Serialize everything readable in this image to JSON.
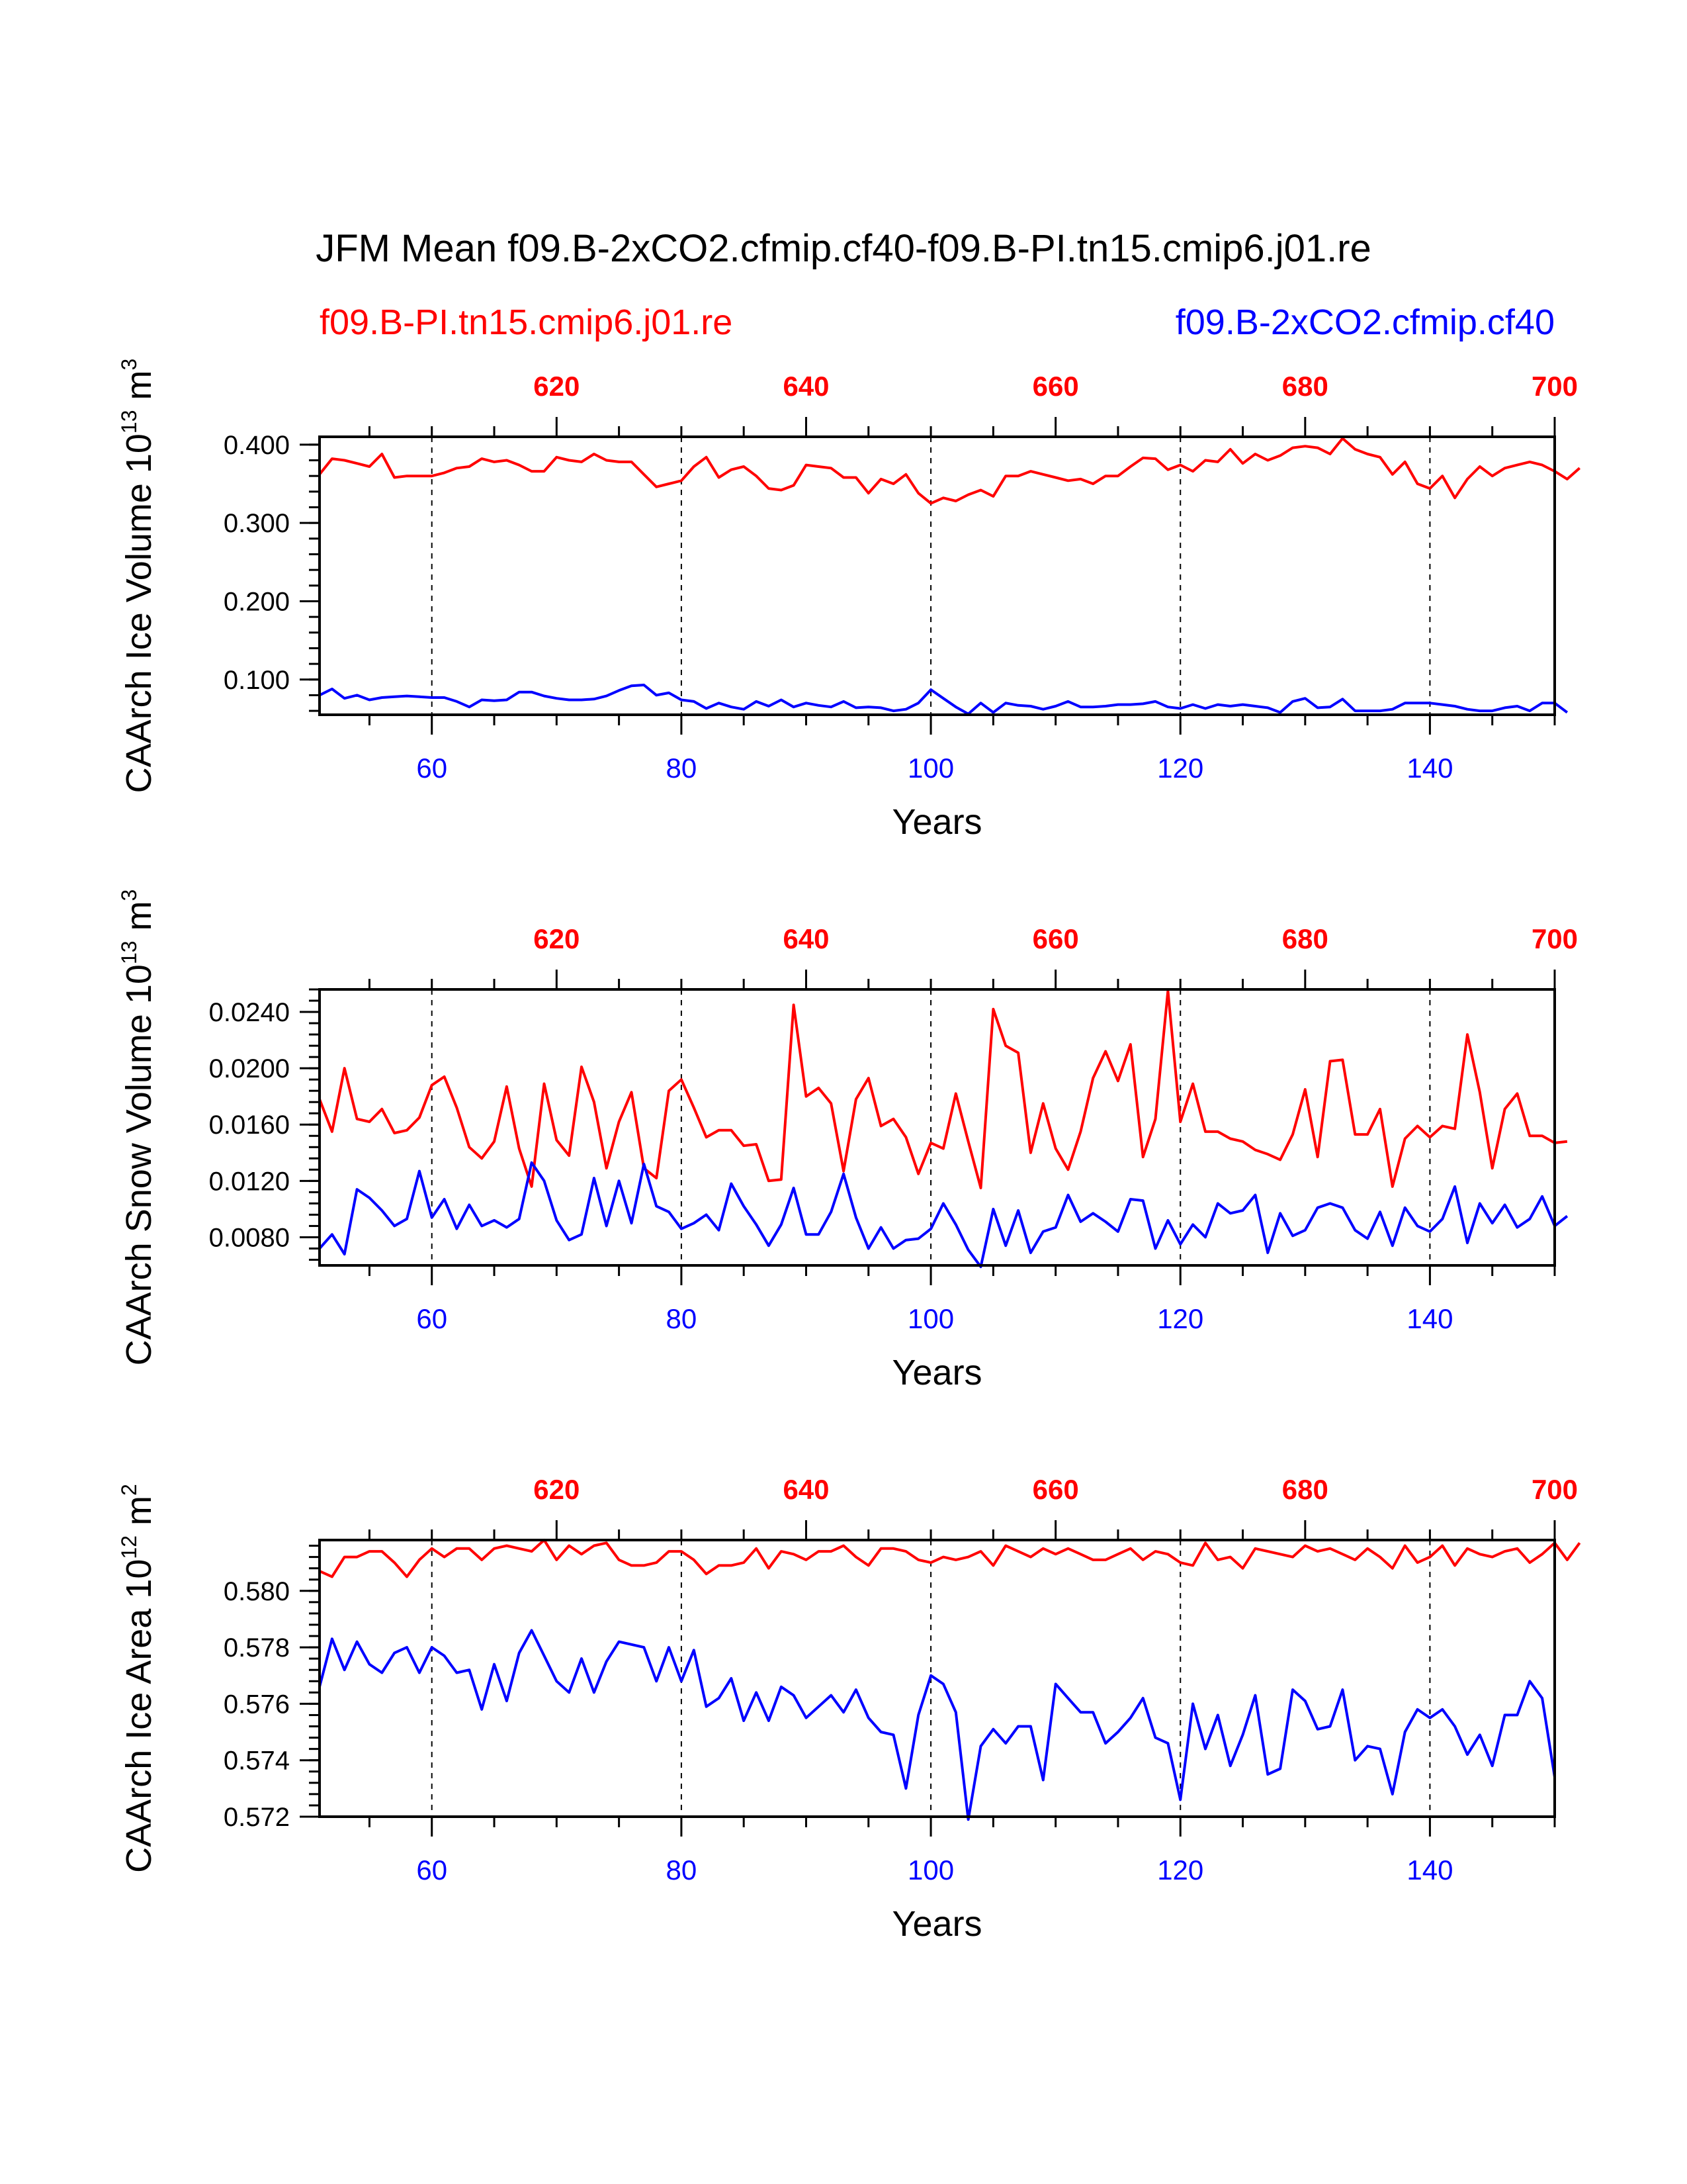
{
  "colors": {
    "pi": "#ff0000",
    "co2": "#0000ff",
    "axis": "#000000"
  },
  "chart_data": {
    "type": "line",
    "title": "JFM Mean f09.B-2xCO2.cfmip.cf40-f09.B-PI.tn15.cmip6.j01.re",
    "legend": [
      {
        "name": "f09.B-PI.tn15.cmip6.j01.re",
        "color": "#ff0000",
        "position": "top-left"
      },
      {
        "name": "f09.B-2xCO2.cfmip.cf40",
        "color": "#0000ff",
        "position": "top-right"
      }
    ],
    "panels": [
      {
        "id": "ice-volume",
        "ylabel": "CAArch Ice Volume 10",
        "ylabel_sup": "13",
        "ylabel_unit": " m",
        "ylabel_unit_sup": "3",
        "xlabel": "Years",
        "xlim": [
          51,
          150
        ],
        "top_xlim": [
          601,
          700
        ],
        "ylim": [
          0.055,
          0.41
        ],
        "yticks": [
          0.1,
          0.2,
          0.3,
          0.4
        ],
        "ytick_labels": [
          "0.100",
          "0.200",
          "0.300",
          "0.400"
        ],
        "yminor_step": 0.02,
        "xticks": [
          60,
          80,
          100,
          120,
          140
        ],
        "xtick_labels": [
          "60",
          "80",
          "100",
          "120",
          "140"
        ],
        "top_xticks": [
          620,
          640,
          660,
          680,
          700
        ],
        "top_xtick_labels": [
          "620",
          "640",
          "660",
          "680",
          "700"
        ],
        "series": [
          {
            "name": "f09.B-PI.tn15.cmip6.j01.re",
            "color": "#ff0000",
            "x_start": 51,
            "values": [
              0.362,
              0.382,
              0.38,
              0.376,
              0.372,
              0.388,
              0.358,
              0.36,
              0.36,
              0.36,
              0.364,
              0.37,
              0.372,
              0.382,
              0.378,
              0.38,
              0.374,
              0.366,
              0.366,
              0.384,
              0.38,
              0.378,
              0.388,
              0.38,
              0.378,
              0.378,
              0.362,
              0.346,
              0.35,
              0.354,
              0.372,
              0.384,
              0.358,
              0.368,
              0.372,
              0.36,
              0.344,
              0.342,
              0.348,
              0.374,
              0.372,
              0.37,
              0.358,
              0.358,
              0.338,
              0.356,
              0.35,
              0.362,
              0.338,
              0.325,
              0.332,
              0.328,
              0.336,
              0.342,
              0.334,
              0.36,
              0.36,
              0.366,
              0.362,
              0.358,
              0.354,
              0.356,
              0.35,
              0.36,
              0.36,
              0.372,
              0.383,
              0.382,
              0.368,
              0.374,
              0.366,
              0.38,
              0.378,
              0.394,
              0.376,
              0.388,
              0.38,
              0.386,
              0.396,
              0.398,
              0.396,
              0.388,
              0.408,
              0.394,
              0.388,
              0.384,
              0.362,
              0.378,
              0.35,
              0.344,
              0.36,
              0.332,
              0.356,
              0.372,
              0.36,
              0.37,
              0.374,
              0.378,
              0.374,
              0.366,
              0.356,
              0.37
            ]
          },
          {
            "name": "f09.B-2xCO2.cfmip.cf40",
            "color": "#0000ff",
            "x_start": 51,
            "values": [
              0.08,
              0.088,
              0.076,
              0.08,
              0.074,
              0.077,
              0.078,
              0.079,
              0.078,
              0.077,
              0.077,
              0.072,
              0.065,
              0.074,
              0.073,
              0.074,
              0.084,
              0.084,
              0.079,
              0.076,
              0.074,
              0.074,
              0.075,
              0.079,
              0.086,
              0.092,
              0.093,
              0.08,
              0.083,
              0.074,
              0.072,
              0.063,
              0.07,
              0.065,
              0.062,
              0.072,
              0.066,
              0.074,
              0.065,
              0.07,
              0.067,
              0.065,
              0.072,
              0.064,
              0.065,
              0.064,
              0.06,
              0.062,
              0.07,
              0.087,
              0.076,
              0.065,
              0.056,
              0.07,
              0.058,
              0.07,
              0.067,
              0.066,
              0.062,
              0.066,
              0.072,
              0.065,
              0.065,
              0.066,
              0.068,
              0.068,
              0.069,
              0.072,
              0.065,
              0.063,
              0.068,
              0.063,
              0.068,
              0.066,
              0.068,
              0.066,
              0.064,
              0.058,
              0.072,
              0.076,
              0.064,
              0.065,
              0.075,
              0.06,
              0.06,
              0.06,
              0.062,
              0.07,
              0.07,
              0.07,
              0.068,
              0.066,
              0.062,
              0.06,
              0.06,
              0.064,
              0.066,
              0.06,
              0.07,
              0.07,
              0.058
            ]
          }
        ]
      },
      {
        "id": "snow-volume",
        "ylabel": "CAArch Snow Volume 10",
        "ylabel_sup": "13",
        "ylabel_unit": " m",
        "ylabel_unit_sup": "3",
        "xlabel": "Years",
        "xlim": [
          51,
          150
        ],
        "top_xlim": [
          601,
          700
        ],
        "ylim": [
          0.006,
          0.0256
        ],
        "yticks": [
          0.008,
          0.012,
          0.016,
          0.02,
          0.024
        ],
        "ytick_labels": [
          "0.0080",
          "0.0120",
          "0.0160",
          "0.0200",
          "0.0240"
        ],
        "yminor_step": 0.0008,
        "xticks": [
          60,
          80,
          100,
          120,
          140
        ],
        "xtick_labels": [
          "60",
          "80",
          "100",
          "120",
          "140"
        ],
        "top_xticks": [
          620,
          640,
          660,
          680,
          700
        ],
        "top_xtick_labels": [
          "620",
          "640",
          "660",
          "680",
          "700"
        ],
        "series": [
          {
            "name": "f09.B-PI.tn15.cmip6.j01.re",
            "color": "#ff0000",
            "x_start": 51,
            "values": [
              0.0178,
              0.0155,
              0.02,
              0.0164,
              0.0162,
              0.0171,
              0.0154,
              0.0156,
              0.0165,
              0.0188,
              0.0194,
              0.0172,
              0.0144,
              0.0136,
              0.0148,
              0.0187,
              0.0143,
              0.0116,
              0.0189,
              0.0149,
              0.0138,
              0.0201,
              0.0176,
              0.0129,
              0.0162,
              0.0183,
              0.0129,
              0.0122,
              0.0184,
              0.0192,
              0.0172,
              0.0151,
              0.0156,
              0.0156,
              0.0145,
              0.0146,
              0.012,
              0.0121,
              0.0245,
              0.018,
              0.0186,
              0.0175,
              0.0127,
              0.0178,
              0.0193,
              0.0159,
              0.0164,
              0.0151,
              0.0125,
              0.0147,
              0.0143,
              0.0182,
              0.0148,
              0.0115,
              0.0242,
              0.0216,
              0.0211,
              0.014,
              0.0175,
              0.0143,
              0.0128,
              0.0155,
              0.0193,
              0.0212,
              0.0191,
              0.0217,
              0.0137,
              0.0164,
              0.0255,
              0.0162,
              0.0189,
              0.0155,
              0.0155,
              0.015,
              0.0148,
              0.0142,
              0.0139,
              0.0135,
              0.0153,
              0.0185,
              0.0137,
              0.0205,
              0.0206,
              0.0153,
              0.0153,
              0.0171,
              0.0116,
              0.015,
              0.0159,
              0.0151,
              0.0159,
              0.0157,
              0.0224,
              0.0183,
              0.0129,
              0.0171,
              0.0182,
              0.0152,
              0.0152,
              0.0147,
              0.0148
            ]
          },
          {
            "name": "f09.B-2xCO2.cfmip.cf40",
            "color": "#0000ff",
            "x_start": 51,
            "values": [
              0.0072,
              0.0082,
              0.0068,
              0.0114,
              0.0108,
              0.0099,
              0.0088,
              0.0093,
              0.0127,
              0.0094,
              0.0107,
              0.0086,
              0.0103,
              0.0088,
              0.0092,
              0.0087,
              0.0093,
              0.0133,
              0.012,
              0.0092,
              0.0078,
              0.0082,
              0.0122,
              0.0088,
              0.012,
              0.009,
              0.0132,
              0.0102,
              0.0098,
              0.0086,
              0.009,
              0.0096,
              0.0085,
              0.0118,
              0.0102,
              0.0089,
              0.0074,
              0.0089,
              0.0115,
              0.0082,
              0.0082,
              0.0098,
              0.0125,
              0.0094,
              0.0072,
              0.0087,
              0.0072,
              0.0078,
              0.0079,
              0.0086,
              0.0104,
              0.0089,
              0.0071,
              0.0059,
              0.01,
              0.0074,
              0.0099,
              0.0069,
              0.0084,
              0.0087,
              0.011,
              0.0091,
              0.0097,
              0.0091,
              0.0084,
              0.0107,
              0.0106,
              0.0072,
              0.0092,
              0.0075,
              0.0089,
              0.008,
              0.0104,
              0.0097,
              0.0099,
              0.011,
              0.0069,
              0.0097,
              0.0081,
              0.0085,
              0.0101,
              0.0104,
              0.0101,
              0.0085,
              0.0079,
              0.0098,
              0.0074,
              0.0101,
              0.0088,
              0.0084,
              0.0093,
              0.0116,
              0.0076,
              0.0104,
              0.009,
              0.0103,
              0.0087,
              0.0093,
              0.0109,
              0.0088,
              0.0095
            ]
          }
        ]
      },
      {
        "id": "ice-area",
        "ylabel": "CAArch Ice Area 10",
        "ylabel_sup": "12",
        "ylabel_unit": " m",
        "ylabel_unit_sup": "2",
        "xlabel": "Years",
        "xlim": [
          51,
          150
        ],
        "top_xlim": [
          601,
          700
        ],
        "ylim": [
          0.572,
          0.5818
        ],
        "yticks": [
          0.572,
          0.574,
          0.576,
          0.578,
          0.58
        ],
        "ytick_labels": [
          "0.572",
          "0.574",
          "0.576",
          "0.578",
          "0.580"
        ],
        "yminor_step": 0.0004,
        "xticks": [
          60,
          80,
          100,
          120,
          140
        ],
        "xtick_labels": [
          "60",
          "80",
          "100",
          "120",
          "140"
        ],
        "top_xticks": [
          620,
          640,
          660,
          680,
          700
        ],
        "top_xtick_labels": [
          "620",
          "640",
          "660",
          "680",
          "700"
        ],
        "series": [
          {
            "name": "f09.B-PI.tn15.cmip6.j01.re",
            "color": "#ff0000",
            "x_start": 51,
            "values": [
              0.5807,
              0.5805,
              0.5812,
              0.5812,
              0.5814,
              0.5814,
              0.581,
              0.5805,
              0.5811,
              0.5815,
              0.5812,
              0.5815,
              0.5815,
              0.5811,
              0.5815,
              0.5816,
              0.5815,
              0.5814,
              0.5818,
              0.5811,
              0.5816,
              0.5813,
              0.5816,
              0.5817,
              0.5811,
              0.5809,
              0.5809,
              0.581,
              0.5814,
              0.5814,
              0.5811,
              0.5806,
              0.5809,
              0.5809,
              0.581,
              0.5815,
              0.5808,
              0.5814,
              0.5813,
              0.5811,
              0.5814,
              0.5814,
              0.5816,
              0.5812,
              0.5809,
              0.5815,
              0.5815,
              0.5814,
              0.5811,
              0.581,
              0.5812,
              0.5811,
              0.5812,
              0.5814,
              0.5809,
              0.5816,
              0.5814,
              0.5812,
              0.5815,
              0.5813,
              0.5815,
              0.5813,
              0.5811,
              0.5811,
              0.5813,
              0.5815,
              0.5811,
              0.5814,
              0.5813,
              0.581,
              0.5809,
              0.5817,
              0.5811,
              0.5812,
              0.5808,
              0.5815,
              0.5814,
              0.5813,
              0.5812,
              0.5816,
              0.5814,
              0.5815,
              0.5813,
              0.5811,
              0.5815,
              0.5812,
              0.5808,
              0.5816,
              0.581,
              0.5812,
              0.5816,
              0.5809,
              0.5815,
              0.5813,
              0.5812,
              0.5814,
              0.5815,
              0.581,
              0.5813,
              0.5817,
              0.5811,
              0.5817
            ]
          },
          {
            "name": "f09.B-2xCO2.cfmip.cf40",
            "color": "#0000ff",
            "x_start": 51,
            "values": [
              0.5766,
              0.5783,
              0.5772,
              0.5782,
              0.5774,
              0.5771,
              0.5778,
              0.578,
              0.5771,
              0.578,
              0.5777,
              0.5771,
              0.5772,
              0.5758,
              0.5774,
              0.5761,
              0.5778,
              0.5786,
              0.5777,
              0.5768,
              0.5764,
              0.5776,
              0.5764,
              0.5775,
              0.5782,
              0.5781,
              0.578,
              0.5768,
              0.578,
              0.5768,
              0.5779,
              0.5759,
              0.5762,
              0.5769,
              0.5754,
              0.5764,
              0.5754,
              0.5766,
              0.5763,
              0.5755,
              0.5759,
              0.5763,
              0.5757,
              0.5765,
              0.5755,
              0.575,
              0.5749,
              0.573,
              0.5756,
              0.577,
              0.5767,
              0.5757,
              0.5719,
              0.5745,
              0.5751,
              0.5746,
              0.5752,
              0.5752,
              0.5733,
              0.5767,
              0.5762,
              0.5757,
              0.5757,
              0.5746,
              0.575,
              0.5755,
              0.5762,
              0.5748,
              0.5746,
              0.5726,
              0.576,
              0.5744,
              0.5756,
              0.5738,
              0.5749,
              0.5763,
              0.5735,
              0.5737,
              0.5765,
              0.5761,
              0.5751,
              0.5752,
              0.5765,
              0.574,
              0.5745,
              0.5744,
              0.5728,
              0.575,
              0.5758,
              0.5755,
              0.5758,
              0.5752,
              0.5742,
              0.5749,
              0.5738,
              0.5756,
              0.5756,
              0.5768,
              0.5762,
              0.5734
            ]
          }
        ]
      }
    ]
  }
}
